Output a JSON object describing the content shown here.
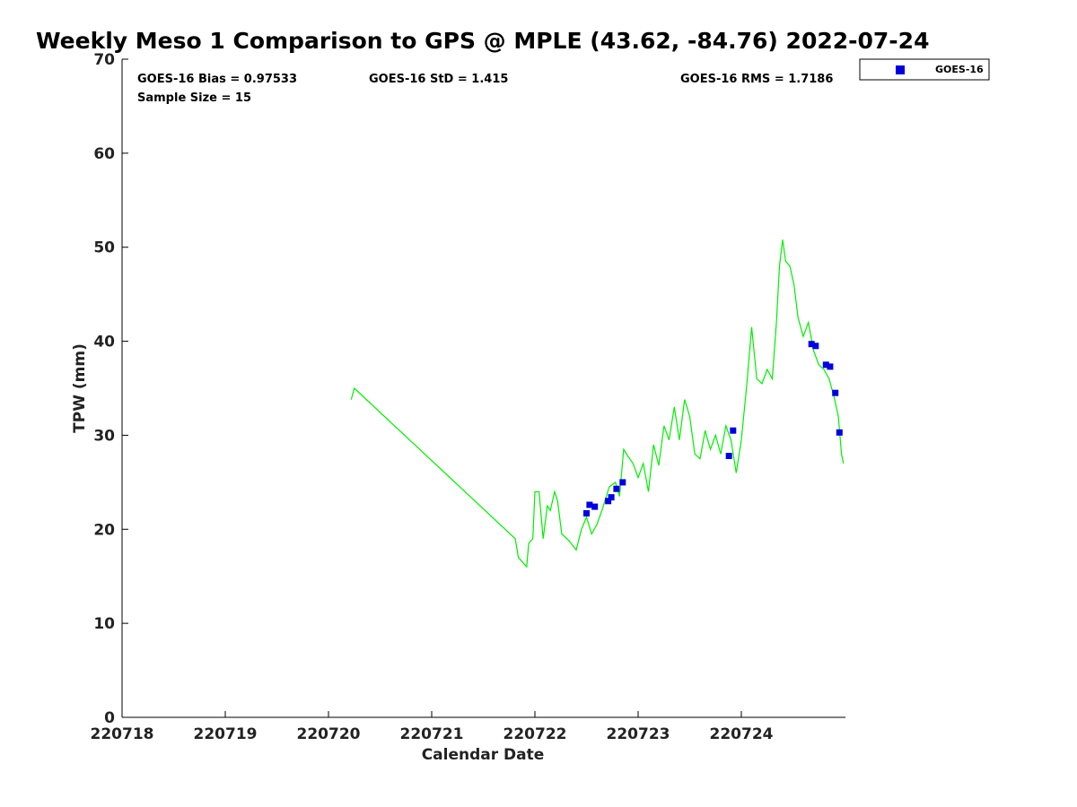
{
  "chart_data": {
    "type": "scatter",
    "title": "Weekly Meso 1 Comparison to GPS @ MPLE (43.62, -84.76) 2022-07-24",
    "xlabel": "Calendar Date",
    "ylabel": "TPW (mm)",
    "xlim": [
      220718,
      220725
    ],
    "ylim": [
      0,
      70
    ],
    "x_tick_labels": [
      "220718",
      "220719",
      "220720",
      "220721",
      "220722",
      "220723",
      "220724"
    ],
    "y_ticks": [
      0,
      10,
      20,
      30,
      40,
      50,
      60,
      70
    ],
    "grid": false,
    "legend_position": "top-right",
    "stats": {
      "bias": "GOES-16 Bias = 0.97533",
      "std": "GOES-16 StD = 1.415",
      "rms": "GOES-16 RMS = 1.7186",
      "sample_size": "Sample Size = 15"
    },
    "series": [
      {
        "name": "GOES-16",
        "kind": "scatter",
        "color": "#0000dd",
        "x": [
          220722.5,
          220722.53,
          220722.58,
          220722.71,
          220722.74,
          220722.79,
          220722.85,
          220723.88,
          220723.92,
          220724.68,
          220724.72,
          220724.82,
          220724.86,
          220724.91,
          220724.95
        ],
        "y": [
          21.7,
          22.6,
          22.4,
          23.0,
          23.4,
          24.3,
          25.0,
          27.8,
          30.5,
          39.7,
          39.5,
          37.5,
          37.3,
          34.5,
          30.3
        ]
      },
      {
        "kind": "line",
        "color": "#00ee00",
        "x": [
          220720.22,
          220720.25,
          220721.81,
          220721.84,
          220721.92,
          220721.94,
          220721.98,
          220722.0,
          220722.04,
          220722.08,
          220722.12,
          220722.15,
          220722.19,
          220722.22,
          220722.26,
          220722.33,
          220722.4,
          220722.45,
          220722.5,
          220722.55,
          220722.6,
          220722.65,
          220722.72,
          220722.78,
          220722.82,
          220722.86,
          220722.9,
          220722.95,
          220723.0,
          220723.05,
          220723.1,
          220723.15,
          220723.2,
          220723.25,
          220723.3,
          220723.35,
          220723.4,
          220723.45,
          220723.5,
          220723.55,
          220723.6,
          220723.65,
          220723.7,
          220723.75,
          220723.8,
          220723.85,
          220723.9,
          220723.95,
          220724.0,
          220724.05,
          220724.1,
          220724.15,
          220724.2,
          220724.25,
          220724.3,
          220724.34,
          220724.37,
          220724.4,
          220724.43,
          220724.47,
          220724.51,
          220724.55,
          220724.6,
          220724.65,
          220724.7,
          220724.75,
          220724.8,
          220724.85,
          220724.9,
          220724.94,
          220724.97,
          220724.99
        ],
        "y": [
          33.8,
          35.0,
          19.0,
          17.0,
          16.0,
          18.5,
          19.0,
          24.0,
          24.0,
          19.0,
          22.5,
          22.0,
          24.0,
          23.0,
          19.5,
          18.8,
          17.8,
          20.0,
          21.3,
          19.5,
          20.5,
          22.0,
          24.5,
          25.0,
          23.5,
          28.5,
          27.8,
          27.0,
          25.5,
          27.0,
          24.0,
          29.0,
          26.8,
          31.0,
          29.5,
          33.0,
          29.5,
          33.8,
          32.0,
          28.0,
          27.5,
          30.5,
          28.5,
          30.0,
          28.0,
          31.0,
          29.5,
          26.0,
          29.5,
          35.0,
          41.5,
          36.0,
          35.5,
          37.0,
          36.0,
          42.0,
          48.0,
          50.8,
          48.5,
          48.0,
          46.0,
          42.5,
          40.5,
          42.0,
          39.0,
          37.5,
          37.0,
          36.0,
          34.0,
          32.0,
          28.0,
          27.0
        ]
      }
    ]
  }
}
